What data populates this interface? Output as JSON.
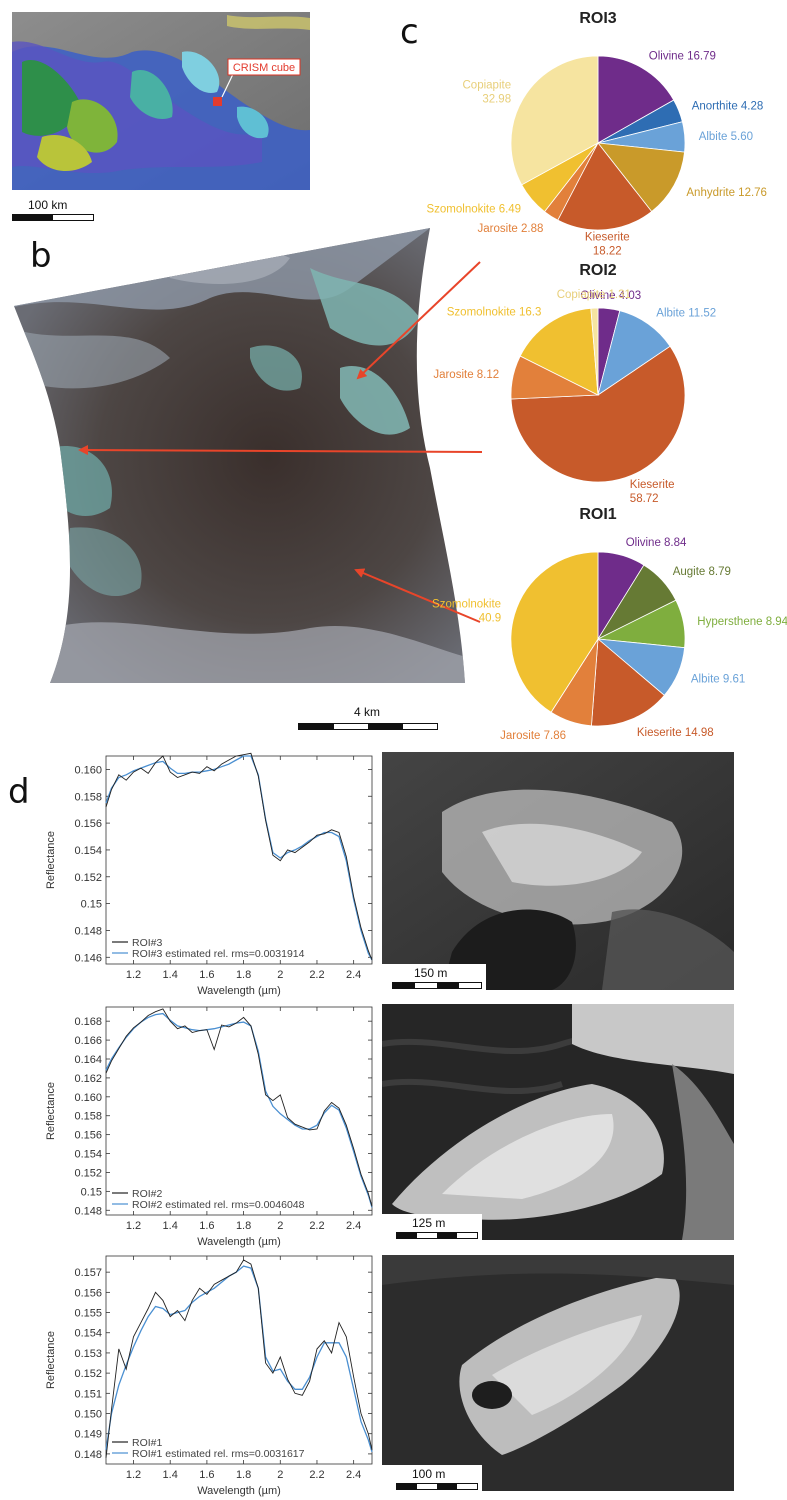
{
  "panels": {
    "a": "a",
    "b": "b",
    "c": "c",
    "d": "d"
  },
  "panel_a": {
    "callout": "CRISM cube",
    "scalebar": "100 km"
  },
  "panel_b": {
    "scalebar": "4 km"
  },
  "colors": {
    "olivine": "#6f2c8a",
    "anorthite": "#2e6db3",
    "albite": "#6aa2d8",
    "anhydrite": "#c99a2a",
    "kieserite": "#c75a2a",
    "jarosite": "#e2803b",
    "szomolnokite": "#f0c030",
    "copiapite": "#f6e4a0",
    "augite": "#667a34",
    "hypersthene": "#7fae3e",
    "arrow": "#e8452a",
    "spec_meas": "#222222",
    "spec_est": "#4a8fd1"
  },
  "chart_data": [
    {
      "type": "pie",
      "title": "ROI3",
      "slices": [
        {
          "label": "Olivine",
          "value": 16.79,
          "display": "Olivine 16.79",
          "color": "#6f2c8a"
        },
        {
          "label": "Anorthite",
          "value": 4.28,
          "display": "Anorthite 4.28",
          "color": "#2e6db3"
        },
        {
          "label": "Albite",
          "value": 5.6,
          "display": "Albite 5.60",
          "color": "#6aa2d8"
        },
        {
          "label": "Anhydrite",
          "value": 12.76,
          "display": "Anhydrite 12.76",
          "color": "#c99a2a"
        },
        {
          "label": "Kieserite",
          "value": 18.22,
          "display": "Kieserite 18.22",
          "color": "#c75a2a"
        },
        {
          "label": "Jarosite",
          "value": 2.88,
          "display": "Jarosite 2.88",
          "color": "#e2803b"
        },
        {
          "label": "Szomolnokite",
          "value": 6.49,
          "display": "Szomolnokite 6.49",
          "color": "#f0c030"
        },
        {
          "label": "Copiapite",
          "value": 32.98,
          "display": "Copiapite 32.98",
          "color": "#f6e4a0"
        }
      ]
    },
    {
      "type": "pie",
      "title": "ROI2",
      "slices": [
        {
          "label": "Olivine",
          "value": 4.03,
          "display": "Olivine 4.03",
          "color": "#6f2c8a"
        },
        {
          "label": "Albite",
          "value": 11.52,
          "display": "Albite 11.52",
          "color": "#6aa2d8"
        },
        {
          "label": "Kieserite",
          "value": 58.72,
          "display": "Kieserite 58.72",
          "color": "#c75a2a"
        },
        {
          "label": "Jarosite",
          "value": 8.12,
          "display": "Jarosite 8.12",
          "color": "#e2803b"
        },
        {
          "label": "Szomolnokite",
          "value": 16.3,
          "display": "Szomolnokite 16.3",
          "color": "#f0c030"
        },
        {
          "label": "Copiapite",
          "value": 1.31,
          "display": "Copiapite 1.31",
          "color": "#f6e4a0"
        }
      ]
    },
    {
      "type": "pie",
      "title": "ROI1",
      "slices": [
        {
          "label": "Olivine",
          "value": 8.84,
          "display": "Olivine 8.84",
          "color": "#6f2c8a"
        },
        {
          "label": "Augite",
          "value": 8.79,
          "display": "Augite 8.79",
          "color": "#667a34"
        },
        {
          "label": "Hypersthene",
          "value": 8.94,
          "display": "Hypersthene 8.94",
          "color": "#7fae3e"
        },
        {
          "label": "Albite",
          "value": 9.61,
          "display": "Albite 9.61",
          "color": "#6aa2d8"
        },
        {
          "label": "Kieserite",
          "value": 14.98,
          "display": "Kieserite 14.98",
          "color": "#c75a2a"
        },
        {
          "label": "Jarosite",
          "value": 7.86,
          "display": "Jarosite 7.86",
          "color": "#e2803b"
        },
        {
          "label": "Szomolnokite",
          "value": 40.9,
          "display": "Szomolnokite 40.9",
          "color": "#f0c030"
        }
      ]
    },
    {
      "type": "line",
      "xlabel": "Wavelength (µm)",
      "ylabel": "Reflectance",
      "xlim": [
        1.05,
        2.5
      ],
      "ylim": [
        0.1455,
        0.161
      ],
      "xticks": [
        "1.2",
        "1.4",
        "1.6",
        "1.8",
        "2",
        "2.2",
        "2.4"
      ],
      "yticks": [
        "0.146",
        "0.148",
        "0.15",
        "0.152",
        "0.154",
        "0.156",
        "0.158",
        "0.160"
      ],
      "legend": "bottom-left",
      "series": [
        {
          "name": "ROI#3",
          "x": [
            1.05,
            1.08,
            1.12,
            1.16,
            1.2,
            1.24,
            1.28,
            1.32,
            1.36,
            1.4,
            1.44,
            1.48,
            1.52,
            1.56,
            1.6,
            1.64,
            1.68,
            1.72,
            1.76,
            1.8,
            1.84,
            1.88,
            1.92,
            1.96,
            2.0,
            2.04,
            2.08,
            2.12,
            2.16,
            2.2,
            2.24,
            2.28,
            2.32,
            2.36,
            2.4,
            2.44,
            2.48,
            2.5
          ],
          "y": [
            0.1572,
            0.1585,
            0.1596,
            0.1592,
            0.1598,
            0.1601,
            0.1597,
            0.1605,
            0.161,
            0.1598,
            0.1594,
            0.1596,
            0.1598,
            0.1597,
            0.1602,
            0.1599,
            0.1604,
            0.1607,
            0.161,
            0.1611,
            0.1612,
            0.1595,
            0.1562,
            0.1536,
            0.1532,
            0.154,
            0.1538,
            0.1542,
            0.1546,
            0.1551,
            0.1552,
            0.1555,
            0.1553,
            0.1535,
            0.1505,
            0.1482,
            0.1465,
            0.1458
          ]
        },
        {
          "name": "ROI#3 estimated rel. rms=0.0031914",
          "x": [
            1.05,
            1.08,
            1.12,
            1.16,
            1.2,
            1.24,
            1.28,
            1.32,
            1.36,
            1.4,
            1.44,
            1.48,
            1.52,
            1.56,
            1.6,
            1.64,
            1.68,
            1.72,
            1.76,
            1.8,
            1.84,
            1.88,
            1.92,
            1.96,
            2.0,
            2.04,
            2.08,
            2.12,
            2.16,
            2.2,
            2.24,
            2.28,
            2.32,
            2.36,
            2.4,
            2.44,
            2.48,
            2.5
          ],
          "y": [
            0.1575,
            0.1586,
            0.1594,
            0.1596,
            0.1599,
            0.1601,
            0.1603,
            0.1605,
            0.1606,
            0.1601,
            0.1597,
            0.1597,
            0.1598,
            0.1598,
            0.1599,
            0.16,
            0.1602,
            0.1604,
            0.1607,
            0.161,
            0.161,
            0.1596,
            0.1563,
            0.1538,
            0.1534,
            0.1538,
            0.154,
            0.1543,
            0.1547,
            0.155,
            0.1553,
            0.1553,
            0.155,
            0.1532,
            0.1503,
            0.148,
            0.1463,
            0.1458
          ]
        }
      ]
    },
    {
      "type": "line",
      "xlabel": "Wavelength (µm)",
      "ylabel": "Reflectance",
      "xlim": [
        1.05,
        2.5
      ],
      "ylim": [
        0.1475,
        0.1695
      ],
      "xticks": [
        "1.2",
        "1.4",
        "1.6",
        "1.8",
        "2",
        "2.2",
        "2.4"
      ],
      "yticks": [
        "0.148",
        "0.15",
        "0.152",
        "0.154",
        "0.156",
        "0.158",
        "0.160",
        "0.162",
        "0.164",
        "0.166",
        "0.168"
      ],
      "legend": "bottom-left",
      "series": [
        {
          "name": "ROI#2",
          "x": [
            1.05,
            1.08,
            1.12,
            1.16,
            1.2,
            1.24,
            1.28,
            1.32,
            1.36,
            1.4,
            1.44,
            1.48,
            1.52,
            1.56,
            1.6,
            1.64,
            1.68,
            1.72,
            1.76,
            1.8,
            1.84,
            1.88,
            1.92,
            1.96,
            2.0,
            2.04,
            2.08,
            2.12,
            2.16,
            2.2,
            2.24,
            2.28,
            2.32,
            2.36,
            2.4,
            2.44,
            2.48,
            2.5
          ],
          "y": [
            0.1625,
            0.1638,
            0.1651,
            0.1664,
            0.1673,
            0.1679,
            0.1686,
            0.169,
            0.1693,
            0.168,
            0.1672,
            0.1675,
            0.1668,
            0.167,
            0.1671,
            0.165,
            0.1676,
            0.1674,
            0.1678,
            0.1684,
            0.1675,
            0.1645,
            0.1602,
            0.1596,
            0.1602,
            0.1578,
            0.1571,
            0.1568,
            0.1565,
            0.1566,
            0.1585,
            0.1594,
            0.1588,
            0.157,
            0.1545,
            0.1518,
            0.1498,
            0.1484
          ]
        },
        {
          "name": "ROI#2 estimated rel. rms=0.0046048",
          "x": [
            1.05,
            1.08,
            1.12,
            1.16,
            1.2,
            1.24,
            1.28,
            1.32,
            1.36,
            1.4,
            1.44,
            1.48,
            1.52,
            1.56,
            1.6,
            1.64,
            1.68,
            1.72,
            1.76,
            1.8,
            1.84,
            1.88,
            1.92,
            1.96,
            2.0,
            2.04,
            2.08,
            2.12,
            2.16,
            2.2,
            2.24,
            2.28,
            2.32,
            2.36,
            2.4,
            2.44,
            2.48,
            2.5
          ],
          "y": [
            0.1628,
            0.164,
            0.1652,
            0.1663,
            0.1672,
            0.1679,
            0.1684,
            0.1687,
            0.1688,
            0.1681,
            0.1675,
            0.1673,
            0.1671,
            0.167,
            0.1671,
            0.1672,
            0.1674,
            0.1676,
            0.1678,
            0.1679,
            0.1675,
            0.1648,
            0.1606,
            0.159,
            0.1582,
            0.1576,
            0.157,
            0.1566,
            0.1566,
            0.157,
            0.1583,
            0.1591,
            0.1586,
            0.1567,
            0.1542,
            0.1516,
            0.1496,
            0.1483
          ]
        }
      ]
    },
    {
      "type": "line",
      "xlabel": "Wavelength (µm)",
      "ylabel": "Reflectance",
      "xlim": [
        1.05,
        2.5
      ],
      "ylim": [
        0.1475,
        0.1578
      ],
      "xticks": [
        "1.2",
        "1.4",
        "1.6",
        "1.8",
        "2",
        "2.2",
        "2.4"
      ],
      "yticks": [
        "0.148",
        "0.149",
        "0.150",
        "0.151",
        "0.152",
        "0.153",
        "0.154",
        "0.155",
        "0.156",
        "0.157"
      ],
      "legend": "bottom-left",
      "series": [
        {
          "name": "ROI#1",
          "x": [
            1.05,
            1.08,
            1.12,
            1.16,
            1.2,
            1.24,
            1.28,
            1.32,
            1.36,
            1.4,
            1.44,
            1.48,
            1.52,
            1.56,
            1.6,
            1.64,
            1.68,
            1.72,
            1.76,
            1.8,
            1.84,
            1.88,
            1.92,
            1.96,
            2.0,
            2.04,
            2.08,
            2.12,
            2.16,
            2.2,
            2.24,
            2.28,
            2.32,
            2.36,
            2.4,
            2.44,
            2.48,
            2.5
          ],
          "y": [
            0.1478,
            0.1502,
            0.1532,
            0.1522,
            0.1538,
            0.1545,
            0.1552,
            0.156,
            0.1556,
            0.1548,
            0.1551,
            0.1546,
            0.1556,
            0.1562,
            0.1559,
            0.1564,
            0.1566,
            0.1568,
            0.157,
            0.1576,
            0.1574,
            0.1562,
            0.1525,
            0.152,
            0.1528,
            0.1517,
            0.151,
            0.1509,
            0.1516,
            0.1532,
            0.1536,
            0.153,
            0.1545,
            0.1538,
            0.1518,
            0.15,
            0.149,
            0.1482
          ]
        },
        {
          "name": "ROI#1 estimated rel. rms=0.0031617",
          "x": [
            1.05,
            1.08,
            1.12,
            1.16,
            1.2,
            1.24,
            1.28,
            1.32,
            1.36,
            1.4,
            1.44,
            1.48,
            1.52,
            1.56,
            1.6,
            1.64,
            1.68,
            1.72,
            1.76,
            1.8,
            1.84,
            1.88,
            1.92,
            1.96,
            2.0,
            2.04,
            2.08,
            2.12,
            2.16,
            2.2,
            2.24,
            2.28,
            2.32,
            2.36,
            2.4,
            2.44,
            2.48,
            2.5
          ],
          "y": [
            0.1482,
            0.15,
            0.1514,
            0.1524,
            0.1533,
            0.1541,
            0.1548,
            0.1553,
            0.1552,
            0.1549,
            0.155,
            0.1551,
            0.1555,
            0.1558,
            0.156,
            0.1562,
            0.1565,
            0.1568,
            0.157,
            0.1573,
            0.1572,
            0.1562,
            0.1528,
            0.1521,
            0.1522,
            0.1516,
            0.1512,
            0.1512,
            0.1518,
            0.1528,
            0.1535,
            0.1535,
            0.1535,
            0.1528,
            0.1512,
            0.1496,
            0.1487,
            0.1481
          ]
        }
      ]
    }
  ],
  "panel_d_images": [
    {
      "scalebar": "150 m"
    },
    {
      "scalebar": "125 m"
    },
    {
      "scalebar": "100 m"
    }
  ]
}
